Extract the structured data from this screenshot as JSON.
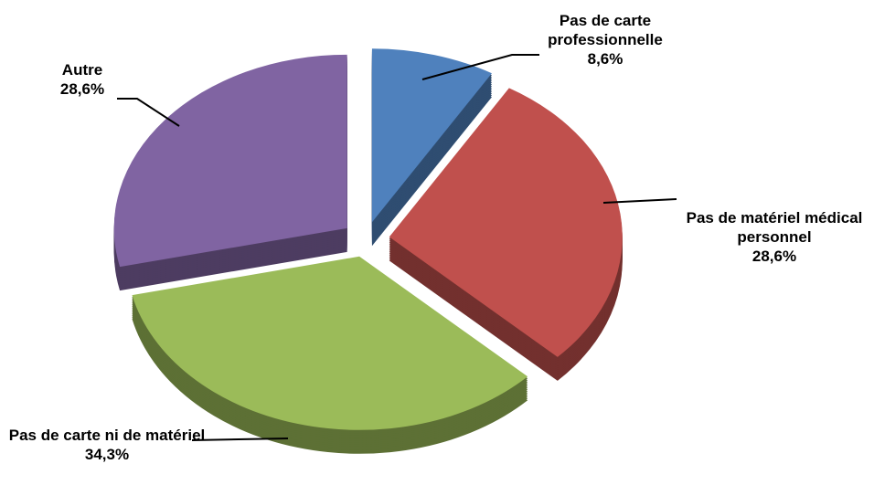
{
  "chart_data": {
    "type": "pie",
    "categories": [
      "Pas de carte professionnelle",
      "Pas de matériel médical personnel",
      "Pas de carte ni de matériel",
      "Autre"
    ],
    "values": [
      8.6,
      28.6,
      34.3,
      28.6
    ],
    "value_labels": [
      "8,6%",
      "28,6%",
      "34,3%",
      "28,6%"
    ],
    "colors": [
      "#4f81bd",
      "#c0504d",
      "#9bbb59",
      "#8064a2"
    ]
  }
}
